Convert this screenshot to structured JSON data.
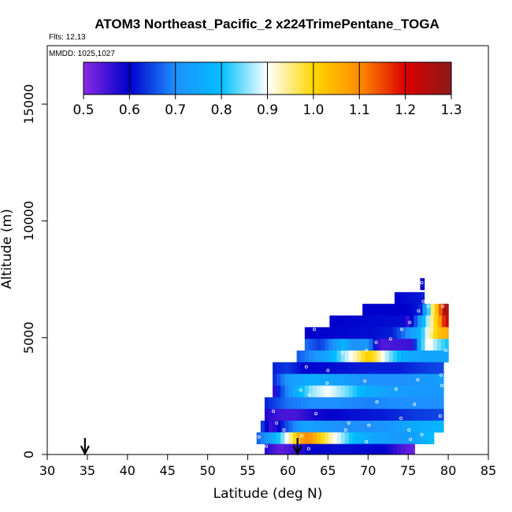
{
  "chart_data": {
    "type": "heatmap",
    "title": "ATOM3 Northeast_Pacific_2 x224TrimePentane_TOGA",
    "flights_label": "Flts: 12,13",
    "dates_label": "MMDD: 1025,1027",
    "xlabel": "Latitude (deg N)",
    "ylabel": "Altitude (m)",
    "xlim": [
      30,
      85
    ],
    "ylim": [
      0,
      17500
    ],
    "x_ticks": [
      "30",
      "35",
      "40",
      "45",
      "50",
      "55",
      "60",
      "65",
      "70",
      "75",
      "80",
      "85"
    ],
    "y_ticks": [
      "0",
      "5000",
      "10000",
      "15000"
    ],
    "colorbar": {
      "range": [
        0.5,
        1.3
      ],
      "tick_labels": [
        "0.5",
        "0.6",
        "0.7",
        "0.8",
        "0.9",
        "1.0",
        "1.1",
        "1.2",
        "1.3"
      ],
      "colors": [
        "#8a2be2",
        "#0000cd",
        "#1e90ff",
        "#00bfff",
        "#ffffff",
        "#ffd700",
        "#ff8c00",
        "#dc0000",
        "#8b1a1a"
      ]
    },
    "arrows": [
      34.7,
      61.2
    ],
    "bands": [
      {
        "alt": 7300,
        "lat": [
          76.5,
          77.0
        ],
        "stops": [
          [
            76.5,
            0.6
          ]
        ]
      },
      {
        "alt": 6700,
        "lat": [
          73.3,
          77.0
        ],
        "stops": [
          [
            73.3,
            0.6
          ],
          [
            77.0,
            0.62
          ]
        ]
      },
      {
        "alt": 6200,
        "lat": [
          69.3,
          80.0
        ],
        "stops": [
          [
            69.3,
            0.6
          ],
          [
            75.0,
            0.6
          ],
          [
            76.5,
            0.62
          ],
          [
            77.3,
            0.75
          ],
          [
            78.0,
            0.95
          ],
          [
            78.7,
            1.05
          ],
          [
            79.2,
            1.18
          ],
          [
            79.6,
            1.26
          ],
          [
            80.0,
            1.28
          ]
        ]
      },
      {
        "alt": 5700,
        "lat": [
          65.2,
          80.0
        ],
        "stops": [
          [
            65.2,
            0.6
          ],
          [
            74.0,
            0.61
          ],
          [
            75.0,
            0.56
          ],
          [
            76.0,
            0.66
          ],
          [
            77.0,
            0.8
          ],
          [
            78.0,
            0.95
          ],
          [
            78.8,
            1.05
          ],
          [
            79.4,
            1.16
          ],
          [
            80.0,
            1.25
          ]
        ]
      },
      {
        "alt": 5200,
        "lat": [
          62.1,
          80.0
        ],
        "stops": [
          [
            62.1,
            0.6
          ],
          [
            71.0,
            0.61
          ],
          [
            73.0,
            0.62
          ],
          [
            74.5,
            0.68
          ],
          [
            76.5,
            0.78
          ],
          [
            77.6,
            0.92
          ],
          [
            78.6,
            1.02
          ],
          [
            80.0,
            1.06
          ]
        ]
      },
      {
        "alt": 4700,
        "lat": [
          62.1,
          80.0
        ],
        "stops": [
          [
            62.1,
            0.68
          ],
          [
            64.0,
            0.64
          ],
          [
            65.5,
            0.7
          ],
          [
            67.0,
            0.78
          ],
          [
            68.0,
            0.7
          ],
          [
            70.0,
            0.72
          ],
          [
            71.5,
            0.54
          ],
          [
            75.5,
            0.56
          ],
          [
            76.5,
            0.78
          ],
          [
            77.5,
            0.92
          ],
          [
            78.5,
            0.86
          ],
          [
            80.0,
            0.8
          ]
        ]
      },
      {
        "alt": 4200,
        "lat": [
          61.1,
          80.0
        ],
        "stops": [
          [
            61.1,
            0.66
          ],
          [
            63.0,
            0.7
          ],
          [
            65.0,
            0.75
          ],
          [
            67.0,
            0.86
          ],
          [
            69.0,
            0.96
          ],
          [
            70.0,
            1.02
          ],
          [
            71.0,
            0.97
          ],
          [
            72.5,
            0.86
          ],
          [
            74.5,
            0.76
          ],
          [
            77.0,
            0.74
          ],
          [
            80.0,
            0.74
          ]
        ]
      },
      {
        "alt": 3700,
        "lat": [
          58.1,
          79.4
        ],
        "stops": [
          [
            58.1,
            0.62
          ],
          [
            60.0,
            0.64
          ],
          [
            62.0,
            0.6
          ],
          [
            66.0,
            0.61
          ],
          [
            70.0,
            0.62
          ],
          [
            74.0,
            0.62
          ],
          [
            77.0,
            0.64
          ],
          [
            79.4,
            0.65
          ]
        ]
      },
      {
        "alt": 3200,
        "lat": [
          58.1,
          79.4
        ],
        "stops": [
          [
            58.1,
            0.62
          ],
          [
            60.0,
            0.72
          ],
          [
            63.0,
            0.76
          ],
          [
            66.0,
            0.74
          ],
          [
            70.0,
            0.7
          ],
          [
            74.0,
            0.7
          ],
          [
            77.0,
            0.72
          ],
          [
            79.4,
            0.73
          ]
        ]
      },
      {
        "alt": 2700,
        "lat": [
          58.1,
          79.4
        ],
        "stops": [
          [
            58.1,
            0.54
          ],
          [
            59.0,
            0.64
          ],
          [
            61.0,
            0.76
          ],
          [
            63.0,
            0.86
          ],
          [
            65.0,
            0.9
          ],
          [
            67.5,
            0.84
          ],
          [
            70.0,
            0.76
          ],
          [
            73.0,
            0.73
          ],
          [
            76.0,
            0.72
          ],
          [
            79.4,
            0.72
          ]
        ]
      },
      {
        "alt": 2200,
        "lat": [
          57.1,
          79.4
        ],
        "stops": [
          [
            57.1,
            0.62
          ],
          [
            60.0,
            0.68
          ],
          [
            63.0,
            0.7
          ],
          [
            66.0,
            0.7
          ],
          [
            70.0,
            0.69
          ],
          [
            74.0,
            0.7
          ],
          [
            77.0,
            0.7
          ],
          [
            79.4,
            0.7
          ]
        ]
      },
      {
        "alt": 1700,
        "lat": [
          57.1,
          79.4
        ],
        "stops": [
          [
            57.1,
            0.58
          ],
          [
            59.0,
            0.55
          ],
          [
            61.0,
            0.55
          ],
          [
            63.0,
            0.58
          ],
          [
            65.0,
            0.6
          ],
          [
            68.0,
            0.61
          ],
          [
            72.0,
            0.62
          ],
          [
            76.0,
            0.64
          ],
          [
            79.4,
            0.65
          ]
        ]
      },
      {
        "alt": 1200,
        "lat": [
          56.6,
          79.4
        ],
        "stops": [
          [
            56.6,
            0.66
          ],
          [
            58.0,
            0.55
          ],
          [
            60.0,
            0.66
          ],
          [
            62.0,
            0.74
          ],
          [
            64.0,
            0.72
          ],
          [
            67.0,
            0.7
          ],
          [
            70.0,
            0.7
          ],
          [
            73.0,
            0.72
          ],
          [
            76.0,
            0.76
          ],
          [
            79.4,
            0.78
          ]
        ]
      },
      {
        "alt": 700,
        "lat": [
          56.1,
          78.2
        ],
        "stops": [
          [
            56.1,
            0.66
          ],
          [
            58.0,
            0.74
          ],
          [
            59.5,
            0.86
          ],
          [
            60.5,
            0.96
          ],
          [
            61.5,
            1.06
          ],
          [
            62.5,
            1.1
          ],
          [
            63.5,
            1.05
          ],
          [
            64.5,
            0.98
          ],
          [
            66.0,
            0.9
          ],
          [
            68.0,
            0.8
          ],
          [
            71.0,
            0.74
          ],
          [
            74.0,
            0.72
          ],
          [
            76.0,
            0.74
          ],
          [
            78.2,
            0.8
          ]
        ]
      },
      {
        "alt": 200,
        "lat": [
          57.1,
          75.8
        ],
        "stops": [
          [
            57.1,
            0.58
          ],
          [
            59.0,
            0.53
          ],
          [
            61.0,
            0.56
          ],
          [
            63.0,
            0.6
          ],
          [
            67.0,
            0.61
          ],
          [
            72.0,
            0.6
          ],
          [
            74.0,
            0.55
          ],
          [
            75.8,
            0.52
          ]
        ]
      }
    ],
    "samples": [
      [
        76.7,
        7350
      ],
      [
        76.9,
        6550
      ],
      [
        77.5,
        6350
      ],
      [
        79.3,
        6350
      ],
      [
        76.3,
        6150
      ],
      [
        75.2,
        5650
      ],
      [
        78.0,
        5350
      ],
      [
        74.2,
        5350
      ],
      [
        72.8,
        4950
      ],
      [
        63.3,
        5350
      ],
      [
        71.0,
        4800
      ],
      [
        69.8,
        4450
      ],
      [
        79.7,
        4450
      ],
      [
        60.8,
        4150
      ],
      [
        66.8,
        4350
      ],
      [
        62.3,
        3750
      ],
      [
        65.0,
        3600
      ],
      [
        76.2,
        3200
      ],
      [
        79.1,
        3400
      ],
      [
        69.6,
        3150
      ],
      [
        64.9,
        3050
      ],
      [
        73.5,
        2800
      ],
      [
        79.2,
        2950
      ],
      [
        62.7,
        2550
      ],
      [
        61.6,
        2750
      ],
      [
        71.1,
        2250
      ],
      [
        75.8,
        2150
      ],
      [
        63.5,
        1750
      ],
      [
        74.1,
        1550
      ],
      [
        79.0,
        1650
      ],
      [
        58.2,
        1850
      ],
      [
        58.6,
        1350
      ],
      [
        67.6,
        1350
      ],
      [
        70.1,
        1250
      ],
      [
        75.1,
        1050
      ],
      [
        59.5,
        1050
      ],
      [
        67.2,
        1050
      ],
      [
        76.7,
        850
      ],
      [
        75.3,
        650
      ],
      [
        56.4,
        750
      ],
      [
        61.7,
        800
      ],
      [
        66.0,
        850
      ],
      [
        69.8,
        550
      ],
      [
        57.3,
        350
      ],
      [
        62.6,
        250
      ]
    ]
  }
}
